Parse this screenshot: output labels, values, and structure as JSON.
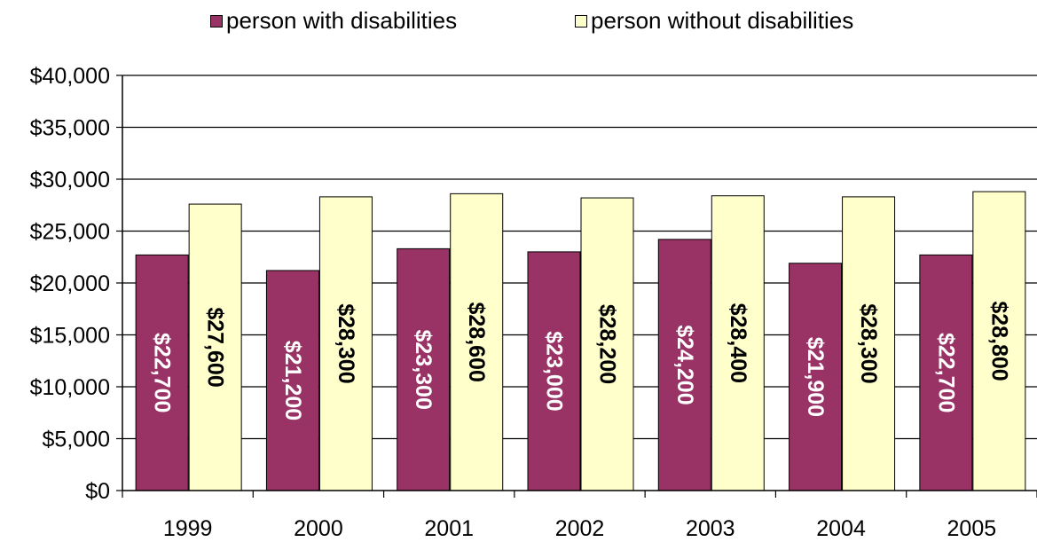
{
  "chart_data": {
    "type": "bar",
    "categories": [
      "1999",
      "2000",
      "2001",
      "2002",
      "2003",
      "2004",
      "2005"
    ],
    "series": [
      {
        "name": "person with disabilities",
        "color": "#993366",
        "values": [
          22700,
          21200,
          23300,
          23000,
          24200,
          21900,
          22700
        ],
        "labels": [
          "$22,700",
          "$21,200",
          "$23,300",
          "$23,000",
          "$24,200",
          "$21,900",
          "$22,700"
        ],
        "label_color": "#ffffff"
      },
      {
        "name": "person without disabilities",
        "color": "#ffffcc",
        "values": [
          27600,
          28300,
          28600,
          28200,
          28400,
          28300,
          28800
        ],
        "labels": [
          "$27,600",
          "$28,300",
          "$28,600",
          "$28,200",
          "$28,400",
          "$28,300",
          "$28,800"
        ],
        "label_color": "#000000"
      }
    ],
    "y_ticks": [
      {
        "value": 0,
        "label": "$0"
      },
      {
        "value": 5000,
        "label": "$5,000"
      },
      {
        "value": 10000,
        "label": "$10,000"
      },
      {
        "value": 15000,
        "label": "$15,000"
      },
      {
        "value": 20000,
        "label": "$20,000"
      },
      {
        "value": 25000,
        "label": "$25,000"
      },
      {
        "value": 30000,
        "label": "$30,000"
      },
      {
        "value": 35000,
        "label": "$35,000"
      },
      {
        "value": 40000,
        "label": "$40,000"
      }
    ],
    "ylim": [
      0,
      40000
    ],
    "grid": true,
    "legend_position": "top",
    "data_label_orientation": "vertical"
  }
}
